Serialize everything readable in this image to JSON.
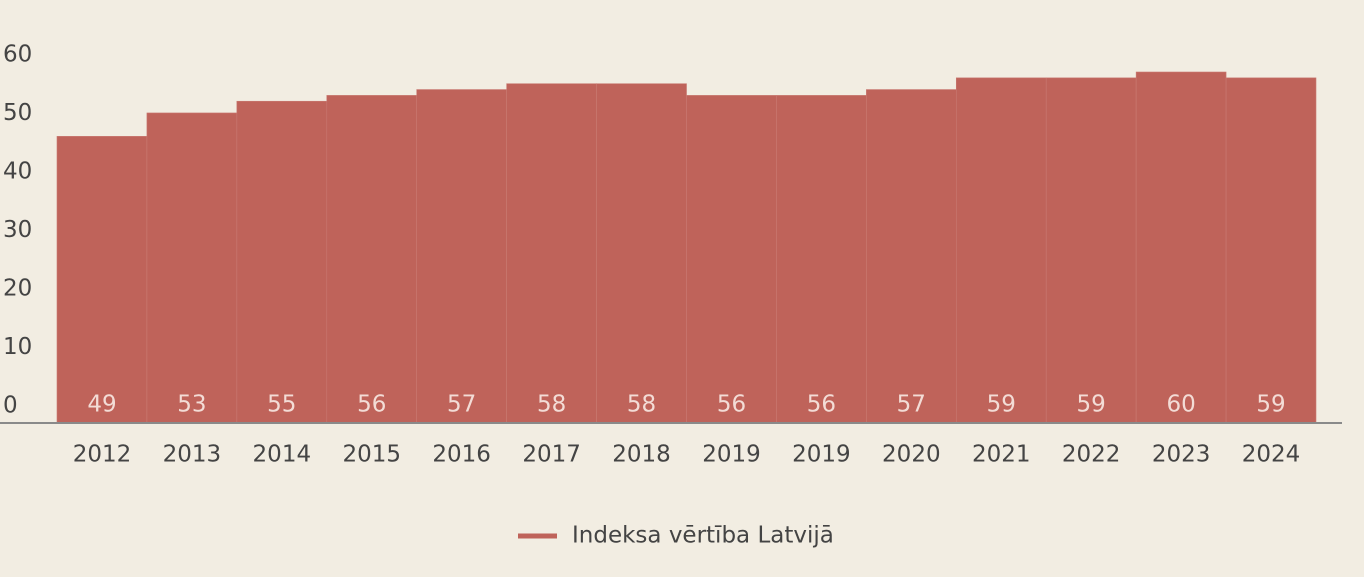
{
  "chart_data": {
    "type": "bar",
    "categories": [
      "2012",
      "2013",
      "2014",
      "2015",
      "2016",
      "2017",
      "2018",
      "2019",
      "2019",
      "2020",
      "2021",
      "2022",
      "2023",
      "2024"
    ],
    "series": [
      {
        "name": "Indeksa vērtība Latvijā",
        "color": "#bf635a",
        "values": [
          49,
          53,
          55,
          56,
          57,
          58,
          58,
          56,
          56,
          57,
          59,
          59,
          60,
          59
        ]
      }
    ],
    "ylim": [
      0,
      60
    ],
    "yticks": [
      0,
      10,
      20,
      30,
      40,
      50,
      60
    ],
    "grid": false,
    "legend": "bottom"
  }
}
